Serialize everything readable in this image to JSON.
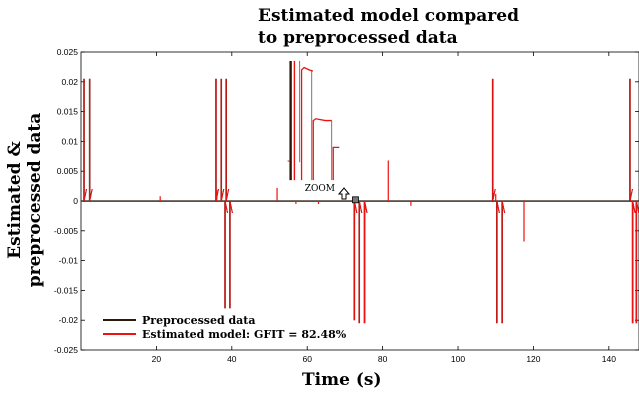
{
  "chart_data": {
    "type": "line",
    "title_lines": [
      "Estimated model compared",
      "to preprocessed data"
    ],
    "xlabel": "Time (s)",
    "ylabel_lines": [
      "Estimated &",
      "preprocessed data"
    ],
    "xlim": [
      0,
      148
    ],
    "ylim": [
      -0.025,
      0.025
    ],
    "xticks": [
      20,
      40,
      60,
      80,
      100,
      120,
      140
    ],
    "yticks": [
      0.025,
      0.02,
      0.015,
      0.01,
      0.005,
      0,
      -0.005,
      -0.01,
      -0.015,
      -0.02,
      -0.025
    ],
    "ytick_labels": [
      "0.025",
      "0.02",
      "0.015",
      "0.01",
      "0.005",
      "0",
      "-0.005",
      "-0.01",
      "-0.015",
      "-0.02",
      "-0.025"
    ],
    "grid": false,
    "legend_position": "bottom-left",
    "series": [
      {
        "name": "Preprocessed data",
        "color": "#2b1a0a",
        "spikes": [
          [
            0.8,
            0.0205
          ],
          [
            2.3,
            0.0205
          ],
          [
            35.8,
            0.0205
          ],
          [
            37.2,
            0.0205
          ],
          [
            38.5,
            0.0205
          ],
          [
            38.2,
            -0.018
          ],
          [
            39.5,
            -0.018
          ],
          [
            72.5,
            -0.02
          ],
          [
            73.8,
            -0.0205
          ],
          [
            75.2,
            -0.0205
          ],
          [
            109.2,
            0.0205
          ],
          [
            110.3,
            -0.0205
          ],
          [
            111.7,
            -0.0205
          ],
          [
            145.6,
            0.0205
          ],
          [
            146.3,
            -0.0205
          ],
          [
            147.3,
            -0.0205
          ]
        ]
      },
      {
        "name": "Estimated model: GFIT = 82.48%",
        "color": "#ee1111",
        "spikes": [
          [
            0.8,
            0.0205
          ],
          [
            2.3,
            0.0205
          ],
          [
            35.8,
            0.0205
          ],
          [
            37.2,
            0.0205
          ],
          [
            38.5,
            0.0205
          ],
          [
            36.0,
            0.0018
          ],
          [
            38.2,
            -0.018
          ],
          [
            39.5,
            -0.018
          ],
          [
            21.0,
            0.0008
          ],
          [
            52.0,
            0.0022
          ],
          [
            57.0,
            -0.0005
          ],
          [
            63.0,
            -0.0005
          ],
          [
            72.5,
            -0.02
          ],
          [
            73.8,
            -0.0205
          ],
          [
            75.2,
            -0.0205
          ],
          [
            81.5,
            0.0068
          ],
          [
            87.5,
            -0.0008
          ],
          [
            109.2,
            0.0205
          ],
          [
            110.3,
            -0.0205
          ],
          [
            111.7,
            -0.0205
          ],
          [
            110.0,
            0.0012
          ],
          [
            117.5,
            -0.0068
          ],
          [
            145.6,
            0.0205
          ],
          [
            146.3,
            -0.0205
          ],
          [
            147.3,
            -0.0205
          ]
        ]
      }
    ],
    "annotation": {
      "text": "ZOOM",
      "box_x": 72.8,
      "box_y": 0.0002,
      "inset_peaks": [
        0.0235,
        0.022,
        0.0135,
        0.009
      ]
    }
  }
}
